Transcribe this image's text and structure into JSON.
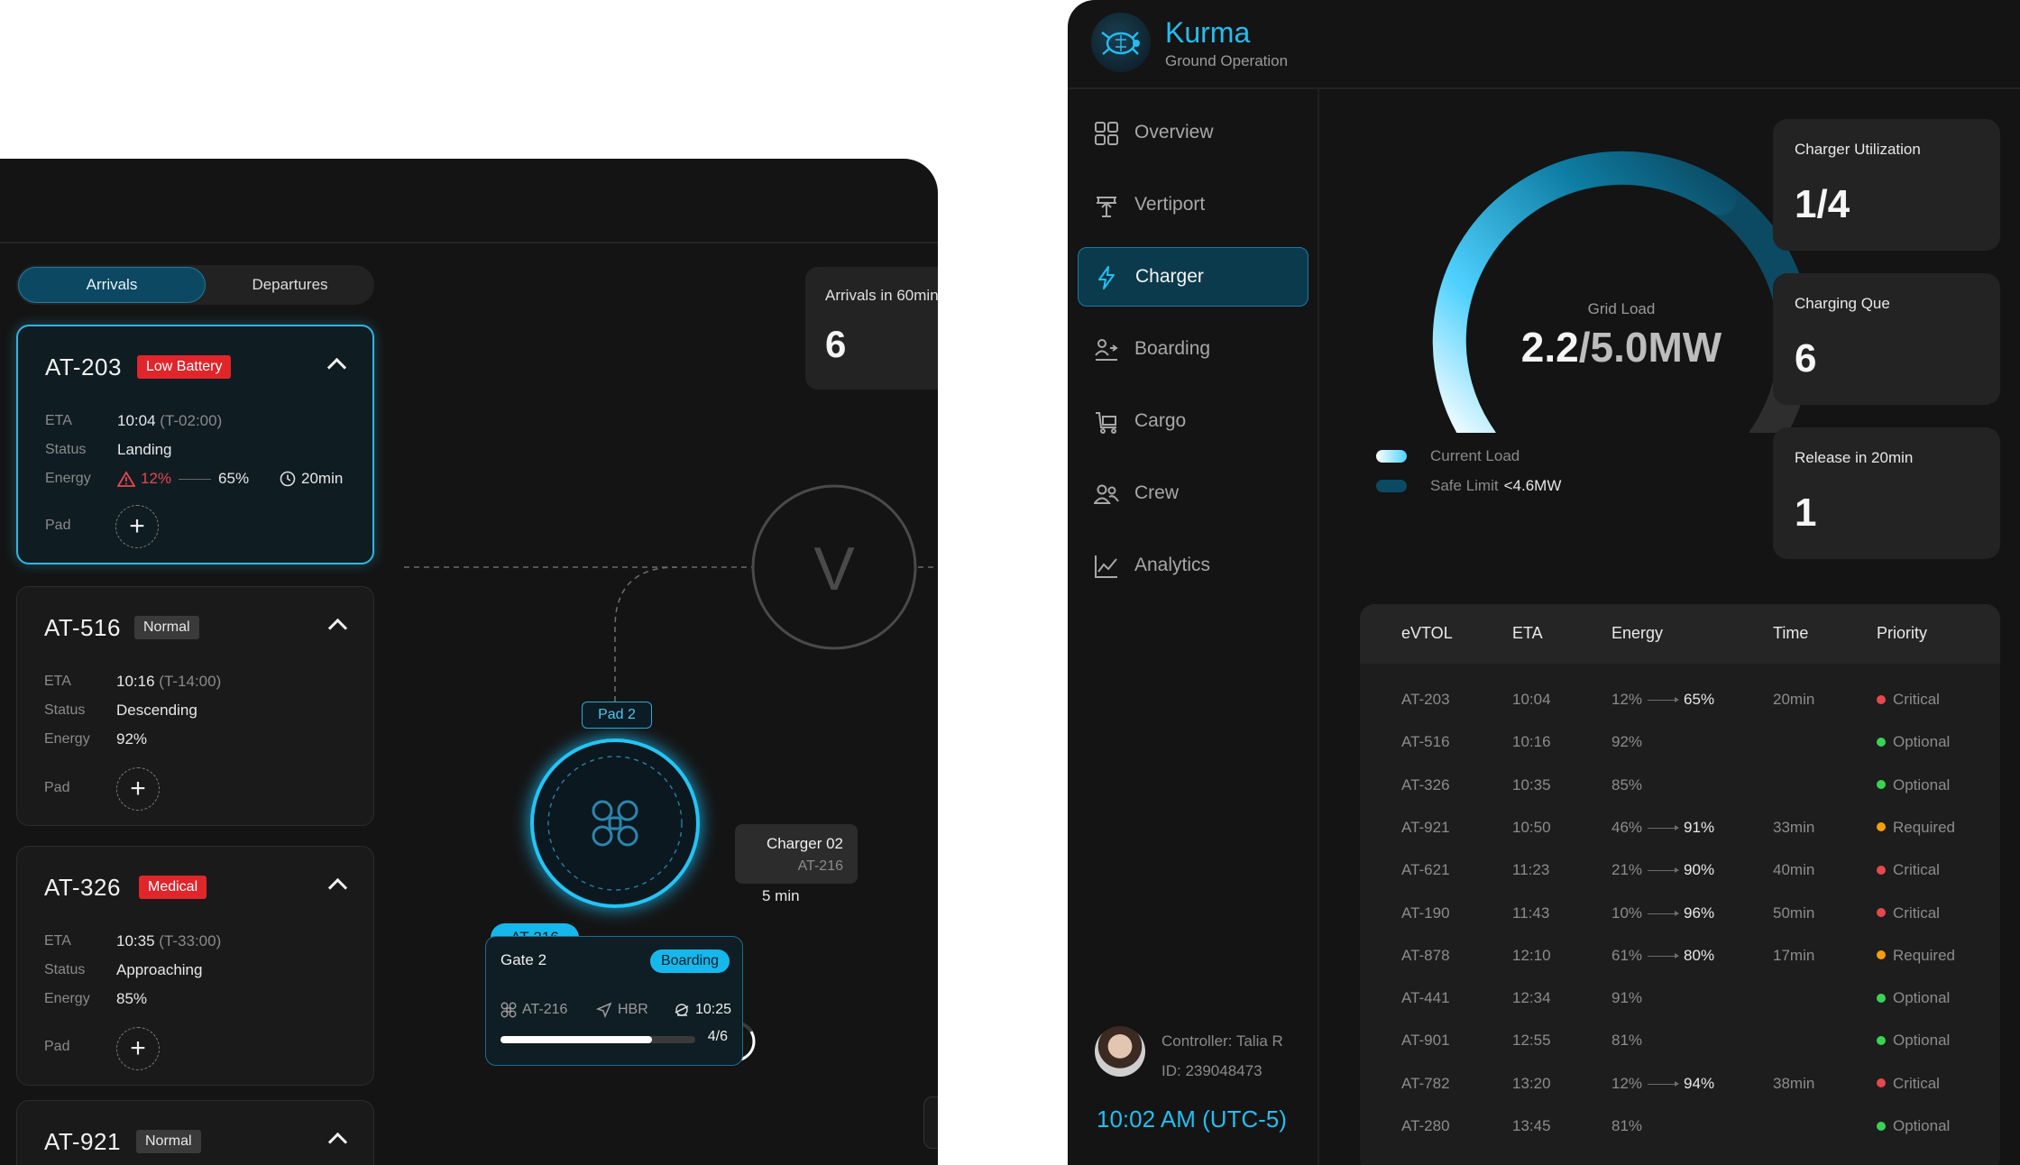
{
  "left": {
    "tabs": {
      "arrivals": "Arrivals",
      "departures": "Departures"
    },
    "flights": [
      {
        "id": "AT-203",
        "tag": "Low Battery",
        "tag_color": "#e0252b",
        "eta": "10:04",
        "eta_rel": "(T-02:00)",
        "status": "Landing",
        "energy_from": "12%",
        "energy_to": "65%",
        "duration": "20min",
        "pad_label": "Pad"
      },
      {
        "id": "AT-516",
        "tag": "Normal",
        "tag_color": "#3a3a3a",
        "eta": "10:16",
        "eta_rel": "(T-14:00)",
        "status": "Descending",
        "energy": "92%",
        "pad_label": "Pad"
      },
      {
        "id": "AT-326",
        "tag": "Medical",
        "tag_color": "#e0252b",
        "eta": "10:35",
        "eta_rel": "(T-33:00)",
        "status": "Approaching",
        "energy": "85%",
        "pad_label": "Pad"
      },
      {
        "id": "AT-921",
        "tag": "Normal",
        "tag_color": "#3a3a3a"
      }
    ],
    "labels": {
      "eta": "ETA",
      "status": "Status",
      "energy": "Energy",
      "plus": "+"
    },
    "arrivals_stat": {
      "title": "Arrivals in 60min",
      "value": "6"
    },
    "map": {
      "vertiport_letter": "V",
      "pad": "Pad 2",
      "aircraft": "AT-216",
      "charger_name": "Charger 02",
      "charger_aircraft": "AT-216",
      "charger_eta": "5 min"
    },
    "gate": {
      "name": "Gate 2",
      "status": "Boarding",
      "aircraft": "AT-216",
      "destination": "HBR",
      "time": "10:25",
      "count": "4/6",
      "progress": 0.78
    }
  },
  "right": {
    "brand": {
      "name": "Kurma",
      "subtitle": "Ground Operation"
    },
    "nav": [
      {
        "label": "Overview",
        "icon": "grid-icon"
      },
      {
        "label": "Vertiport",
        "icon": "vertiport-icon"
      },
      {
        "label": "Charger",
        "icon": "lightning-icon",
        "active": true
      },
      {
        "label": "Boarding",
        "icon": "boarding-icon"
      },
      {
        "label": "Cargo",
        "icon": "cargo-icon"
      },
      {
        "label": "Crew",
        "icon": "crew-icon"
      },
      {
        "label": "Analytics",
        "icon": "analytics-icon"
      }
    ],
    "controller": {
      "name": "Controller: Talia R",
      "id": "ID: 239048473"
    },
    "clock": "10:02 AM (UTC-5)",
    "gauge": {
      "title": "Grid Load",
      "current": "2.2",
      "limit": "/5.0MW",
      "current_value": 2.2,
      "max_value": 5.0,
      "safe_limit": 4.6
    },
    "legend": {
      "current": "Current Load",
      "safe": "Safe Limit",
      "safe_value": "<4.6MW"
    },
    "stats": [
      {
        "title": "Charger Utilization",
        "value": "1/4"
      },
      {
        "title": "Charging Que",
        "value": "6"
      },
      {
        "title": "Release in 20min",
        "value": "1"
      }
    ],
    "table": {
      "headers": [
        "eVTOL",
        "ETA",
        "Energy",
        "Time",
        "Priority"
      ],
      "rows": [
        {
          "id": "AT-203",
          "eta": "10:04",
          "from": "12%",
          "to": "65%",
          "time": "20min",
          "priority": "Critical"
        },
        {
          "id": "AT-516",
          "eta": "10:16",
          "from": "92%",
          "to": "",
          "time": "",
          "priority": "Optional"
        },
        {
          "id": "AT-326",
          "eta": "10:35",
          "from": "85%",
          "to": "",
          "time": "",
          "priority": "Optional"
        },
        {
          "id": "AT-921",
          "eta": "10:50",
          "from": "46%",
          "to": "91%",
          "time": "33min",
          "priority": "Required"
        },
        {
          "id": "AT-621",
          "eta": "11:23",
          "from": "21%",
          "to": "90%",
          "time": "40min",
          "priority": "Critical"
        },
        {
          "id": "AT-190",
          "eta": "11:43",
          "from": "10%",
          "to": "96%",
          "time": "50min",
          "priority": "Critical"
        },
        {
          "id": "AT-878",
          "eta": "12:10",
          "from": "61%",
          "to": "80%",
          "time": "17min",
          "priority": "Required"
        },
        {
          "id": "AT-441",
          "eta": "12:34",
          "from": "91%",
          "to": "",
          "time": "",
          "priority": "Optional"
        },
        {
          "id": "AT-901",
          "eta": "12:55",
          "from": "81%",
          "to": "",
          "time": "",
          "priority": "Optional"
        },
        {
          "id": "AT-782",
          "eta": "13:20",
          "from": "12%",
          "to": "94%",
          "time": "38min",
          "priority": "Critical"
        },
        {
          "id": "AT-280",
          "eta": "13:45",
          "from": "81%",
          "to": "",
          "time": "",
          "priority": "Optional"
        }
      ],
      "priority_colors": {
        "Critical": "#e5484d",
        "Optional": "#39d353",
        "Required": "#f59e0b"
      }
    }
  }
}
